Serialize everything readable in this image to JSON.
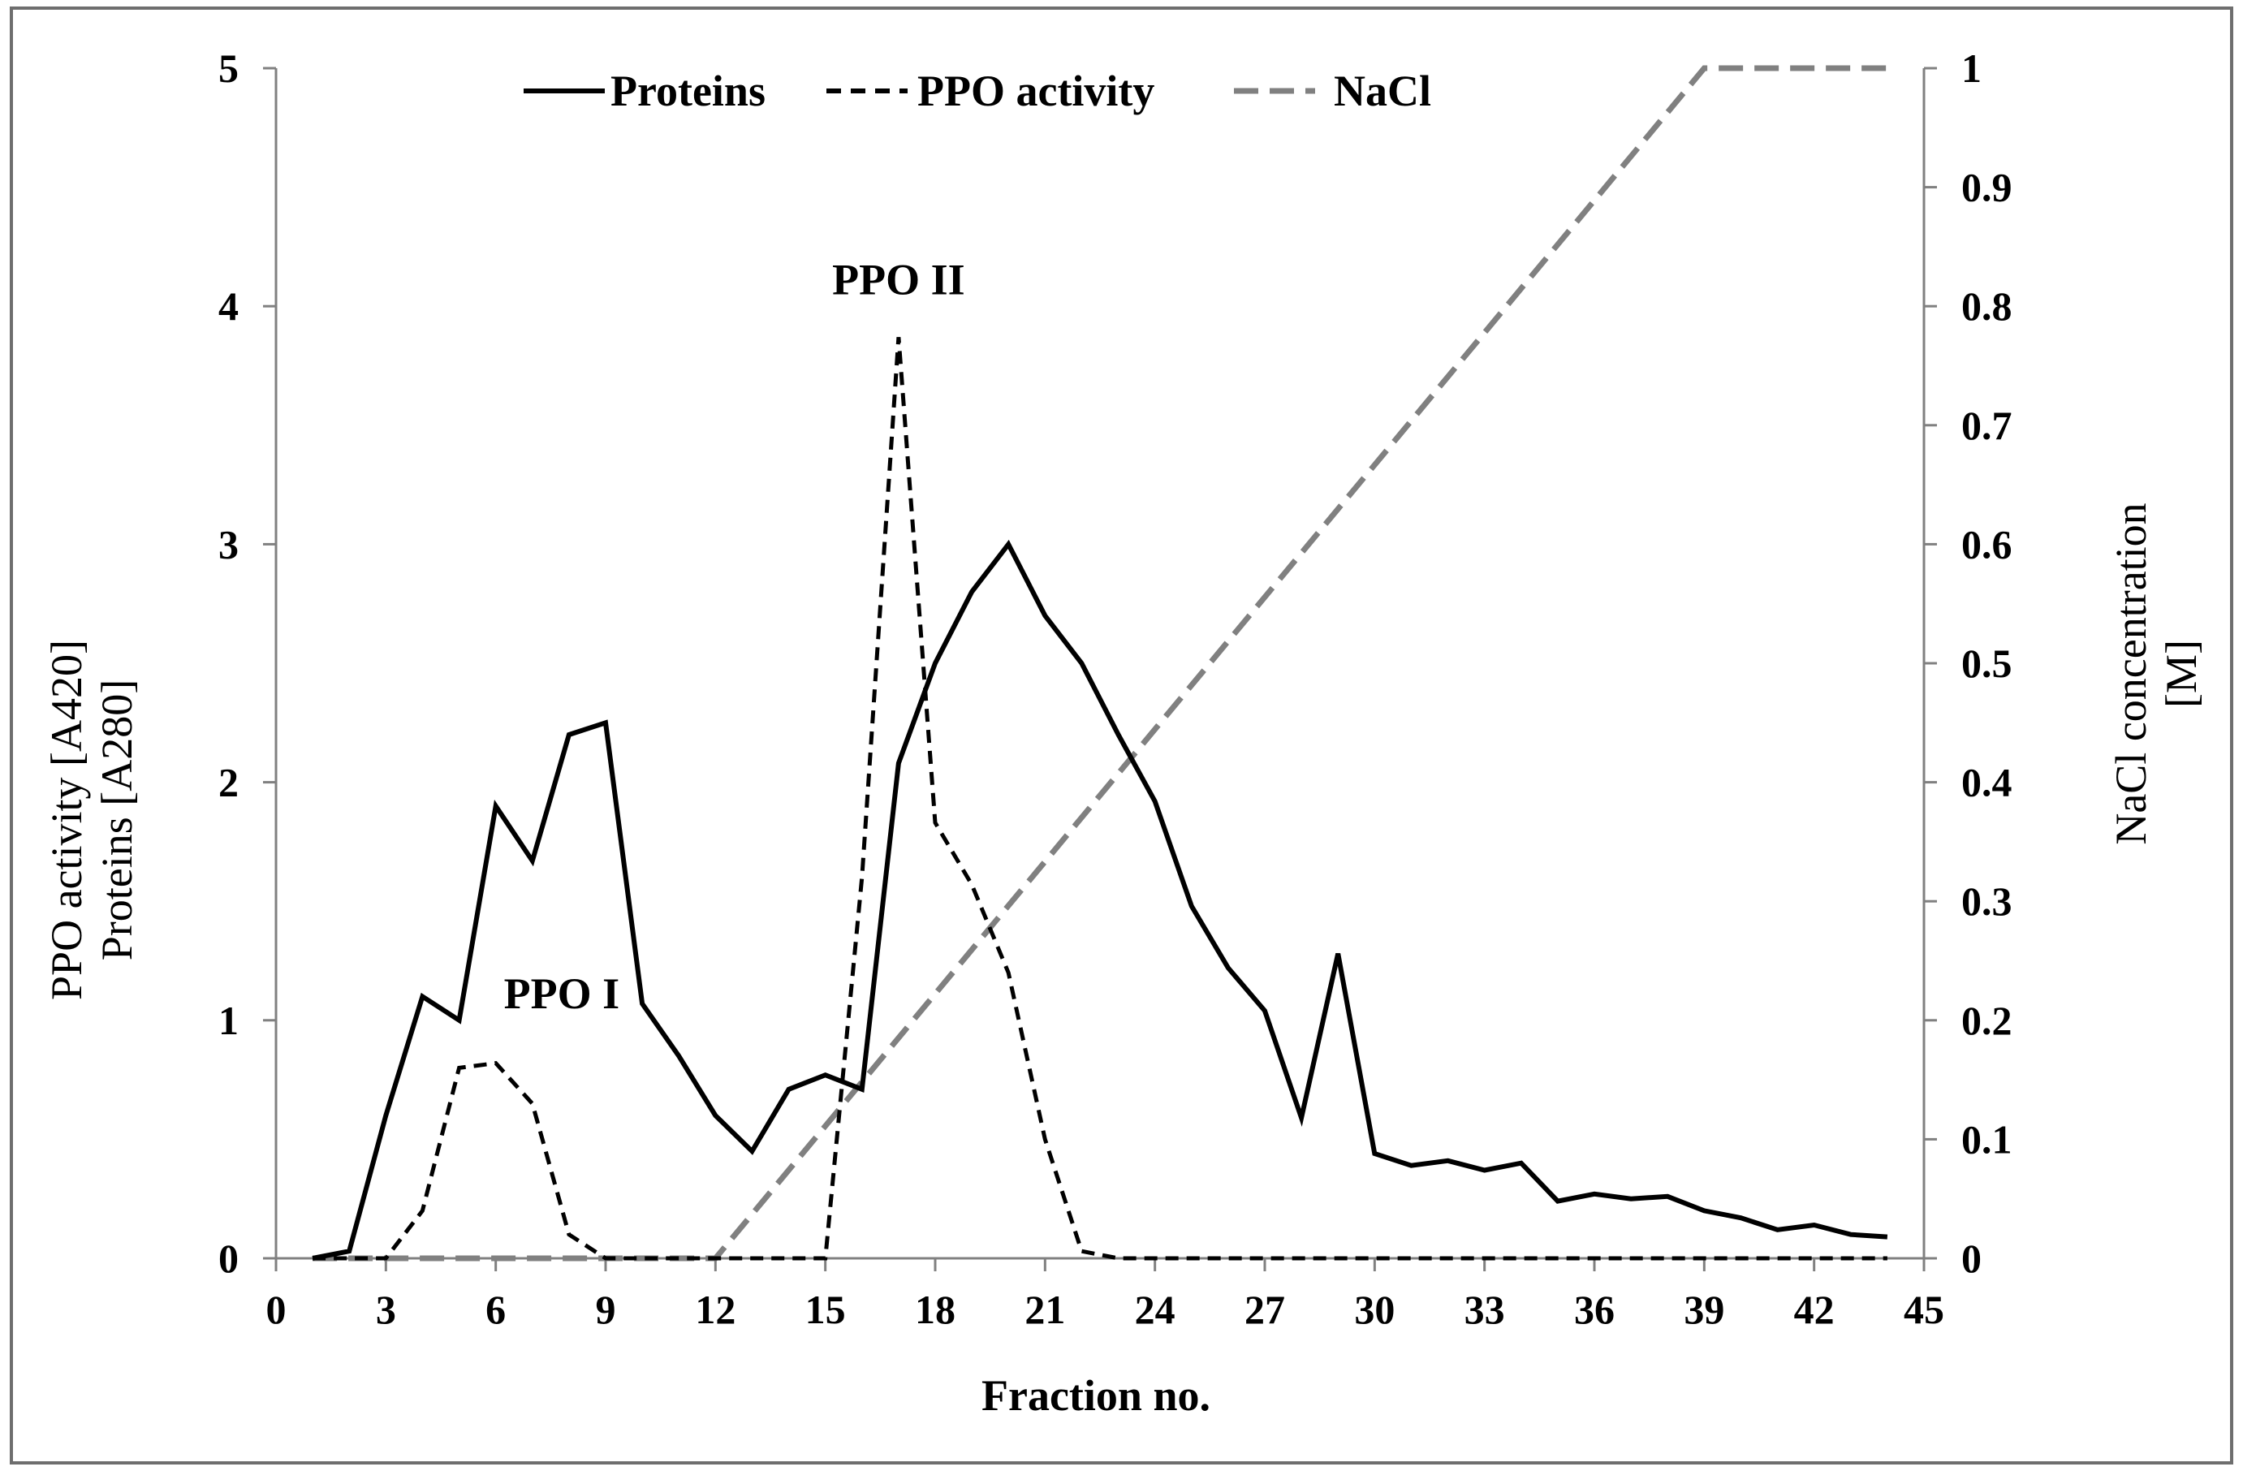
{
  "chart_data": {
    "type": "line",
    "xlabel": "Fraction no.",
    "ylabel_left": [
      "PPO activity [A420]",
      "Proteins [A280]"
    ],
    "ylabel_right": [
      "NaCl concentration",
      "[M]"
    ],
    "xlim": [
      0,
      45
    ],
    "ylim_left": [
      0,
      5
    ],
    "ylim_right": [
      0,
      1
    ],
    "x_ticks": [
      "0",
      "3",
      "6",
      "9",
      "12",
      "15",
      "18",
      "21",
      "24",
      "27",
      "30",
      "33",
      "36",
      "39",
      "42",
      "45"
    ],
    "y_left_ticks": [
      "0",
      "1",
      "2",
      "3",
      "4",
      "5"
    ],
    "y_right_ticks": [
      "0",
      "0.1",
      "0.2",
      "0.3",
      "0.4",
      "0.5",
      "0.6",
      "0.7",
      "0.8",
      "0.9",
      "1"
    ],
    "legend_position": "top-center",
    "series": [
      {
        "name": "Proteins",
        "axis": "left",
        "style": "solid",
        "color": "#000000",
        "x": [
          1,
          2,
          3,
          4,
          5,
          6,
          7,
          8,
          9,
          10,
          11,
          12,
          13,
          14,
          15,
          16,
          17,
          18,
          19,
          20,
          21,
          22,
          23,
          24,
          25,
          26,
          27,
          28,
          29,
          30,
          31,
          32,
          33,
          34,
          35,
          36,
          37,
          38,
          39,
          40,
          41,
          42,
          43,
          44
        ],
        "values": [
          0,
          0.03,
          0.6,
          1.1,
          1.0,
          1.9,
          1.67,
          2.2,
          2.25,
          1.07,
          0.85,
          0.6,
          0.45,
          0.71,
          0.77,
          0.71,
          2.08,
          2.5,
          2.8,
          3.0,
          2.7,
          2.5,
          2.2,
          1.92,
          1.48,
          1.22,
          1.04,
          0.59,
          1.28,
          0.44,
          0.39,
          0.41,
          0.37,
          0.4,
          0.24,
          0.27,
          0.25,
          0.26,
          0.2,
          0.17,
          0.12,
          0.14,
          0.1,
          0.09
        ]
      },
      {
        "name": "PPO activity",
        "axis": "left",
        "style": "dashed",
        "color": "#000000",
        "x": [
          1,
          2,
          3,
          4,
          5,
          6,
          7,
          8,
          9,
          10,
          11,
          12,
          13,
          14,
          15,
          16,
          17,
          18,
          19,
          20,
          21,
          22,
          23,
          24,
          25,
          26,
          27,
          28,
          29,
          30,
          31,
          32,
          33,
          34,
          35,
          36,
          37,
          38,
          39,
          40,
          41,
          42,
          43,
          44
        ],
        "values": [
          0,
          0,
          0,
          0.2,
          0.8,
          0.82,
          0.65,
          0.1,
          0,
          0,
          0,
          0,
          0,
          0,
          0,
          1.6,
          3.87,
          1.83,
          1.57,
          1.2,
          0.5,
          0.03,
          0,
          0,
          0,
          0,
          0,
          0,
          0,
          0,
          0,
          0,
          0,
          0,
          0,
          0,
          0,
          0,
          0,
          0,
          0,
          0,
          0,
          0
        ]
      },
      {
        "name": "NaCl",
        "axis": "right",
        "style": "dashed",
        "color": "#808080",
        "x": [
          1,
          12,
          39,
          44
        ],
        "values": [
          0,
          0,
          1,
          1
        ]
      }
    ],
    "annotations": [
      {
        "text": "PPO I",
        "x": 7.8,
        "y": 1.05
      },
      {
        "text": "PPO II",
        "x": 17,
        "y": 4.05
      }
    ]
  }
}
